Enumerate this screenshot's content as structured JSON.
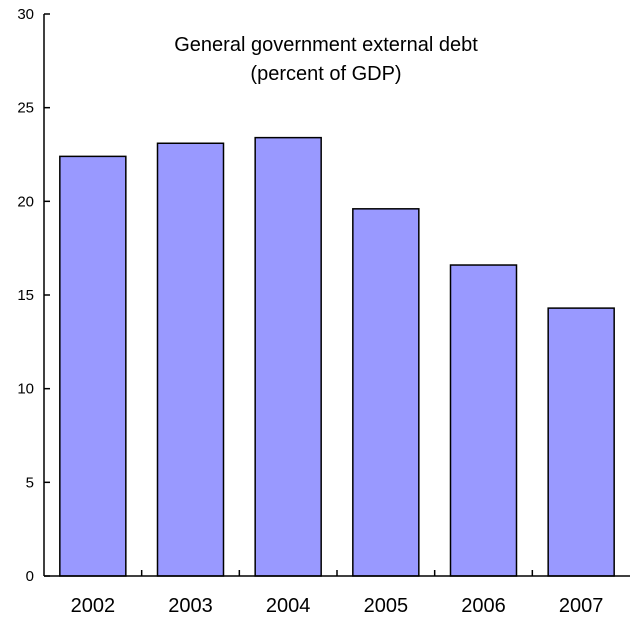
{
  "chart_data": {
    "type": "bar",
    "title": "General government external debt",
    "subtitle": "(percent of GDP)",
    "xlabel": "",
    "ylabel": "",
    "categories": [
      "2002",
      "2003",
      "2004",
      "2005",
      "2006",
      "2007"
    ],
    "values": [
      22.4,
      23.1,
      23.4,
      19.6,
      16.6,
      14.3
    ],
    "ylim": [
      0,
      30
    ],
    "yticks": [
      "0",
      "5",
      "10",
      "15",
      "20",
      "25",
      "30"
    ],
    "grid": false,
    "legend": "none",
    "colors": {
      "bar_fill": "#9999ff",
      "bar_stroke": "#000000",
      "axis": "#000000"
    }
  }
}
